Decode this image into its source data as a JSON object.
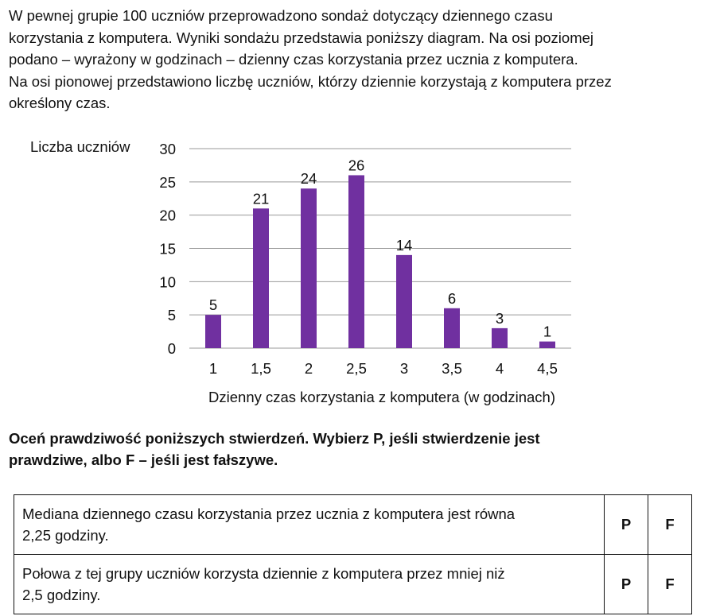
{
  "intro": {
    "lines": [
      "W pewnej grupie  100  uczniów przeprowadzono sondaż dotyczący dziennego czasu",
      "korzystania z komputera. Wyniki sondażu przedstawia poniższy diagram. Na osi poziomej",
      "podano – wyrażony w godzinach – dzienny czas korzystania przez ucznia z komputera.",
      "Na osi pionowej przedstawiono liczbę uczniów, którzy dziennie korzystają z komputera przez",
      "określony czas."
    ]
  },
  "chart_data": {
    "type": "bar",
    "categories": [
      "1",
      "1,5",
      "2",
      "2,5",
      "3",
      "3,5",
      "4",
      "4,5"
    ],
    "values": [
      5,
      21,
      24,
      26,
      14,
      6,
      3,
      1
    ],
    "data_labels": [
      "5",
      "21",
      "24",
      "26",
      "14",
      "6",
      "3",
      "1"
    ],
    "ylabel": "Liczba uczniów",
    "xlabel": "Dzienny czas korzystania z komputera (w godzinach)",
    "ylim": [
      0,
      30
    ],
    "yticks": [
      "0",
      "5",
      "10",
      "15",
      "20",
      "25",
      "30"
    ],
    "grid": true,
    "bar_color": "#7030a0"
  },
  "instructions": {
    "lines": [
      "Oceń prawdziwość poniższych stwierdzeń. Wybierz P, jeśli stwierdzenie jest",
      "prawdziwe, albo F – jeśli jest fałszywe."
    ]
  },
  "statements": [
    {
      "lines": [
        "Mediana dziennego czasu korzystania przez ucznia z komputera jest równa",
        "2,25  godziny."
      ],
      "option_p": "P",
      "option_f": "F"
    },
    {
      "lines": [
        "Połowa z tej grupy uczniów korzysta dziennie z komputera przez mniej niż",
        "2,5  godziny."
      ],
      "option_p": "P",
      "option_f": "F"
    }
  ]
}
